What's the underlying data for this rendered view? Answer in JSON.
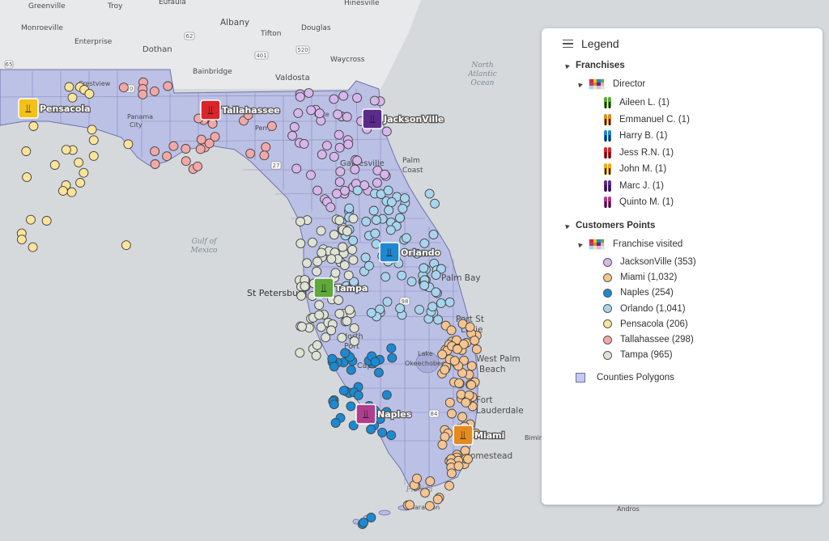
{
  "map": {
    "places": [
      {
        "id": "greenville",
        "text": "Greenville"
      },
      {
        "id": "troy",
        "text": "Troy"
      },
      {
        "id": "eufaula",
        "text": "Eufaula"
      },
      {
        "id": "hinesville",
        "text": "Hinesville"
      },
      {
        "id": "monroeville",
        "text": "Monroeville"
      },
      {
        "id": "albany",
        "text": "Albany"
      },
      {
        "id": "douglas",
        "text": "Douglas"
      },
      {
        "id": "tifton",
        "text": "Tifton"
      },
      {
        "id": "enterprise",
        "text": "Enterprise"
      },
      {
        "id": "dothan",
        "text": "Dothan"
      },
      {
        "id": "waycross",
        "text": "Waycross"
      },
      {
        "id": "bainbridge",
        "text": "Bainbridge"
      },
      {
        "id": "valdosta",
        "text": "Valdosta"
      },
      {
        "id": "crestview",
        "text": "Crestview"
      },
      {
        "id": "panama",
        "text": "Panama"
      },
      {
        "id": "city",
        "text": "City"
      },
      {
        "id": "lake",
        "text": "Lake"
      },
      {
        "id": "perry",
        "text": "Perry"
      },
      {
        "id": "palm",
        "text": "Palm"
      },
      {
        "id": "coast",
        "text": "Coast"
      },
      {
        "id": "gainesville",
        "text": "Gainesville"
      },
      {
        "id": "stpete",
        "text": "St Petersburg"
      },
      {
        "id": "palmbay",
        "text": "Palm Bay"
      },
      {
        "id": "portst",
        "text": "Port St"
      },
      {
        "id": "lucie",
        "text": "Lucie"
      },
      {
        "id": "north",
        "text": "North"
      },
      {
        "id": "port",
        "text": "Port"
      },
      {
        "id": "cape",
        "text": "Cape"
      },
      {
        "id": "westpalm",
        "text": "West Palm"
      },
      {
        "id": "beach",
        "text": "Beach"
      },
      {
        "id": "fort",
        "text": "Fort"
      },
      {
        "id": "lauderdale",
        "text": "Lauderdale"
      },
      {
        "id": "homestead",
        "text": "Homestead"
      },
      {
        "id": "bimini",
        "text": "Bimini"
      },
      {
        "id": "marathon",
        "text": "Marathon"
      },
      {
        "id": "andros",
        "text": "Andros"
      },
      {
        "id": "okee",
        "text": "Okeechobee"
      },
      {
        "id": "lakeo",
        "text": "Lake"
      }
    ],
    "water": [
      {
        "id": "northatlantic",
        "lines": [
          "North",
          "Atlantic",
          "Ocean"
        ]
      },
      {
        "id": "gulf",
        "lines": [
          "Gulf of",
          "Mexico"
        ]
      },
      {
        "id": "florida",
        "lines": [
          "Florida"
        ]
      }
    ],
    "roads": [
      "65",
      "62",
      "401",
      "520",
      "27",
      "84",
      "98",
      "10"
    ],
    "franchises": [
      {
        "name": "Pensacola",
        "color": "#f2c21b"
      },
      {
        "name": "Tallahassee",
        "color": "#d8262b"
      },
      {
        "name": "JacksonVille",
        "color": "#5b2b8c"
      },
      {
        "name": "Orlando",
        "color": "#1e88d2"
      },
      {
        "name": "Tampa",
        "color": "#5fa93a"
      },
      {
        "name": "Naples",
        "color": "#b03e8d"
      },
      {
        "name": "Miami",
        "color": "#e58a1f"
      }
    ]
  },
  "legend": {
    "title": "Legend",
    "franchises_label": "Franchises",
    "director_label": "Director",
    "directors": [
      {
        "label": "Aileen L. (1)",
        "c1": "#5fa93a",
        "c2": "#222"
      },
      {
        "label": "Emmanuel C. (1)",
        "c1": "#e58a1f",
        "c2": "#222"
      },
      {
        "label": "Harry B. (1)",
        "c1": "#1e88d2",
        "c2": "#222"
      },
      {
        "label": "Jess R.N. (1)",
        "c1": "#d8262b",
        "c2": "#222"
      },
      {
        "label": "John M. (1)",
        "c1": "#f2a81b",
        "c2": "#222"
      },
      {
        "label": "Marc J. (1)",
        "c1": "#5b2b8c",
        "c2": "#222"
      },
      {
        "label": "Quinto M. (1)",
        "c1": "#b03e8d",
        "c2": "#222"
      }
    ],
    "customers_label": "Customers Points",
    "visited_label": "Franchise visited",
    "visited": [
      {
        "label": "JacksonVille (353)",
        "color": "#d7b6ec"
      },
      {
        "label": "Miami (1,032)",
        "color": "#f6c48f"
      },
      {
        "label": "Naples (254)",
        "color": "#1a8ad4"
      },
      {
        "label": "Orlando (1,041)",
        "color": "#a9d4ef"
      },
      {
        "label": "Pensacola (206)",
        "color": "#fbe49a"
      },
      {
        "label": "Tallahassee (298)",
        "color": "#f3a8a8"
      },
      {
        "label": "Tampa (965)",
        "color": "#dfe3d6"
      }
    ],
    "polygons_label": "Counties Polygons",
    "multi_colors": [
      "#d8262b",
      "#f2c21b",
      "#1e88d2",
      "#5fa93a",
      "#b03e8d",
      "#e58a1f",
      "#5b2b8c",
      "#f3a8a8",
      "#a9d4ef",
      "#fbe49a",
      "#d7b6ec",
      "#dfe3d6"
    ]
  }
}
